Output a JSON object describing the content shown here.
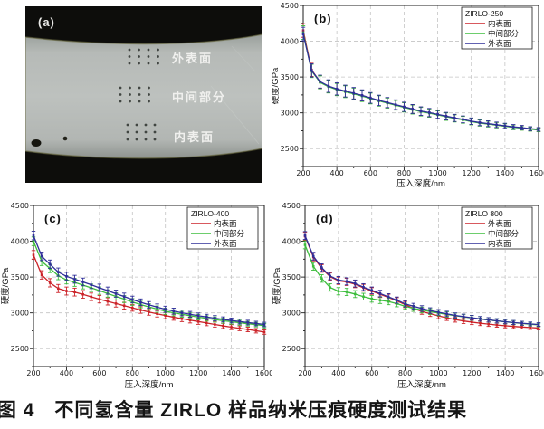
{
  "figure_caption": "图 4　不同氢含量 ZIRLO 样品纳米压痕硬度测试结果",
  "panel_a": {
    "label": "(a)",
    "regions": [
      {
        "label": "外表面"
      },
      {
        "label": "中间部分"
      },
      {
        "label": "内表面"
      }
    ]
  },
  "chart_data": [
    {
      "type": "line",
      "panel_label": "(b)",
      "legend_title": "ZIRLO-250",
      "legend_position": "top-right",
      "xlabel": "压入深度/nm",
      "ylabel": "硬度/GPa",
      "xlim": [
        200,
        1600
      ],
      "ylim": [
        2250,
        4500
      ],
      "x_major": 200,
      "x_minor": 100,
      "y_major": 500,
      "y_minor": 250,
      "y_tick_labels": [
        2500,
        3000,
        3500,
        4000,
        4500
      ],
      "grid": "dashed",
      "error_bar": {
        "start": 95,
        "end": 25
      },
      "x": [
        200,
        250,
        300,
        350,
        400,
        450,
        500,
        550,
        600,
        650,
        700,
        750,
        800,
        850,
        900,
        950,
        1000,
        1050,
        1100,
        1150,
        1200,
        1250,
        1300,
        1350,
        1400,
        1450,
        1500,
        1550,
        1600
      ],
      "series": [
        {
          "name": "内表面",
          "color": "#cc2228",
          "values": [
            4150,
            3600,
            3430,
            3370,
            3330,
            3300,
            3270,
            3240,
            3205,
            3170,
            3140,
            3110,
            3080,
            3050,
            3020,
            3000,
            2975,
            2950,
            2925,
            2905,
            2880,
            2860,
            2845,
            2830,
            2815,
            2800,
            2790,
            2775,
            2765
          ]
        },
        {
          "name": "中间部分",
          "color": "#3dbd3d",
          "values": [
            4120,
            3585,
            3425,
            3365,
            3325,
            3295,
            3265,
            3235,
            3200,
            3166,
            3136,
            3106,
            3076,
            3046,
            3016,
            2996,
            2971,
            2947,
            2922,
            2902,
            2877,
            2857,
            2842,
            2827,
            2812,
            2797,
            2787,
            2772,
            2762
          ]
        },
        {
          "name": "外表面",
          "color": "#2e2e99",
          "values": [
            4100,
            3592,
            3436,
            3374,
            3334,
            3304,
            3274,
            3244,
            3209,
            3174,
            3144,
            3114,
            3084,
            3054,
            3024,
            3004,
            2979,
            2954,
            2929,
            2909,
            2884,
            2864,
            2849,
            2834,
            2819,
            2804,
            2794,
            2779,
            2769
          ]
        }
      ]
    },
    {
      "type": "line",
      "panel_label": "(c)",
      "legend_title": "ZIRLO-400",
      "legend_position": "top-right",
      "xlabel": "压入深度/nm",
      "ylabel": "硬度/GPa",
      "xlim": [
        200,
        1600
      ],
      "ylim": [
        2250,
        4500
      ],
      "x_major": 200,
      "x_minor": 100,
      "y_major": 500,
      "y_minor": 250,
      "y_tick_labels": [
        2500,
        3000,
        3500,
        4000,
        4500
      ],
      "grid": "dashed",
      "error_bar": {
        "start": 60,
        "end": 30
      },
      "x": [
        200,
        250,
        300,
        350,
        400,
        450,
        500,
        550,
        600,
        650,
        700,
        750,
        800,
        850,
        900,
        950,
        1000,
        1050,
        1100,
        1150,
        1200,
        1250,
        1300,
        1350,
        1400,
        1450,
        1500,
        1550,
        1600
      ],
      "series": [
        {
          "name": "内表面",
          "color": "#cc2228",
          "values": [
            3810,
            3530,
            3420,
            3340,
            3305,
            3290,
            3258,
            3224,
            3190,
            3160,
            3130,
            3100,
            3070,
            3040,
            3012,
            2986,
            2962,
            2938,
            2918,
            2898,
            2878,
            2858,
            2838,
            2818,
            2800,
            2784,
            2768,
            2750,
            2732
          ]
        },
        {
          "name": "中间部分",
          "color": "#3dbd3d",
          "values": [
            4000,
            3720,
            3620,
            3520,
            3460,
            3425,
            3388,
            3350,
            3310,
            3270,
            3230,
            3192,
            3152,
            3116,
            3082,
            3052,
            3022,
            3000,
            2980,
            2960,
            2940,
            2922,
            2906,
            2890,
            2876,
            2862,
            2848,
            2835,
            2822
          ]
        },
        {
          "name": "外表面",
          "color": "#2e2e99",
          "values": [
            4080,
            3790,
            3680,
            3570,
            3510,
            3470,
            3432,
            3392,
            3350,
            3310,
            3268,
            3228,
            3186,
            3148,
            3112,
            3080,
            3050,
            3024,
            3000,
            2980,
            2960,
            2942,
            2925,
            2908,
            2893,
            2878,
            2864,
            2851,
            2838
          ]
        }
      ]
    },
    {
      "type": "line",
      "panel_label": "(d)",
      "legend_title": "ZIRLO 800",
      "legend_position": "top-right",
      "xlabel": "压入深度/nm",
      "ylabel": "硬度/GPa",
      "xlim": [
        200,
        1600
      ],
      "ylim": [
        2250,
        4500
      ],
      "x_major": 200,
      "x_minor": 100,
      "y_major": 500,
      "y_minor": 250,
      "y_tick_labels": [
        2500,
        3000,
        3500,
        4000,
        4500
      ],
      "grid": "dashed",
      "error_bar": {
        "start": 55,
        "end": 25
      },
      "x": [
        200,
        250,
        300,
        350,
        400,
        450,
        500,
        550,
        600,
        650,
        700,
        750,
        800,
        850,
        900,
        950,
        1000,
        1050,
        1100,
        1150,
        1200,
        1250,
        1300,
        1350,
        1400,
        1450,
        1500,
        1550,
        1600
      ],
      "series": [
        {
          "name": "外表面",
          "color": "#cc2228",
          "values": [
            4070,
            3780,
            3620,
            3505,
            3448,
            3432,
            3400,
            3350,
            3305,
            3260,
            3215,
            3168,
            3115,
            3062,
            3020,
            2988,
            2958,
            2930,
            2906,
            2886,
            2870,
            2855,
            2842,
            2830,
            2820,
            2810,
            2802,
            2795,
            2788
          ]
        },
        {
          "name": "中间部分",
          "color": "#3dbd3d",
          "values": [
            3950,
            3650,
            3480,
            3355,
            3302,
            3292,
            3262,
            3226,
            3196,
            3176,
            3158,
            3128,
            3092,
            3062,
            3040,
            3018,
            2998,
            2978,
            2960,
            2944,
            2928,
            2914,
            2900,
            2887,
            2875,
            2863,
            2852,
            2841,
            2831
          ]
        },
        {
          "name": "内表面",
          "color": "#2e2e99",
          "values": [
            4080,
            3792,
            3632,
            3515,
            3458,
            3440,
            3410,
            3360,
            3315,
            3270,
            3224,
            3178,
            3126,
            3092,
            3060,
            3032,
            3008,
            2986,
            2964,
            2947,
            2931,
            2916,
            2902,
            2888,
            2876,
            2865,
            2855,
            2846,
            2837
          ]
        }
      ]
    }
  ]
}
